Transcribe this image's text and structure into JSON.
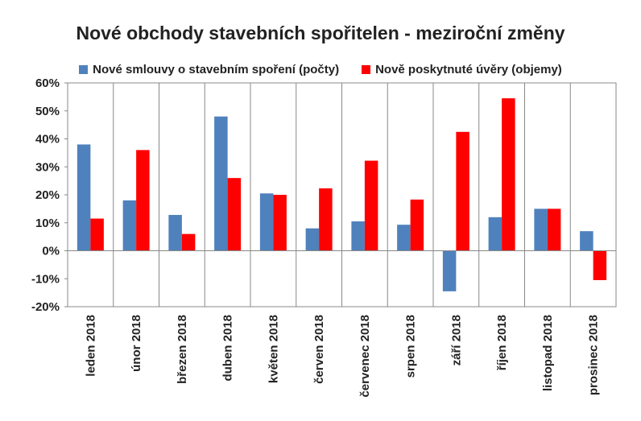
{
  "chart_data": {
    "type": "bar",
    "title": "Nové obchody stavebních spořitelen - meziroční změny",
    "categories": [
      "leden 2018",
      "únor 2018",
      "březen 2018",
      "duben 2018",
      "květen 2018",
      "červen 2018",
      "červenec 2018",
      "srpen 2018",
      "září 2018",
      "říjen 2018",
      "listopad 2018",
      "prosinec 2018"
    ],
    "series": [
      {
        "name": "Nové smlouvy o stavebním spoření (počty)",
        "color": "#4F81BD",
        "values": [
          38,
          18,
          12.8,
          48,
          20.5,
          8,
          10.5,
          9.3,
          -14.5,
          12,
          15,
          7
        ]
      },
      {
        "name": "Nově poskytnuté úvěry (objemy)",
        "color": "#FF0000",
        "values": [
          11.5,
          36,
          6,
          26,
          20,
          22.3,
          32.2,
          18.3,
          42.5,
          54.5,
          15,
          -10.5
        ]
      }
    ],
    "ylim": [
      -20,
      60
    ],
    "yticks": [
      "-20%",
      "-10%",
      "0%",
      "10%",
      "20%",
      "30%",
      "40%",
      "50%",
      "60%"
    ],
    "grid": "vertical",
    "legend": "top"
  }
}
